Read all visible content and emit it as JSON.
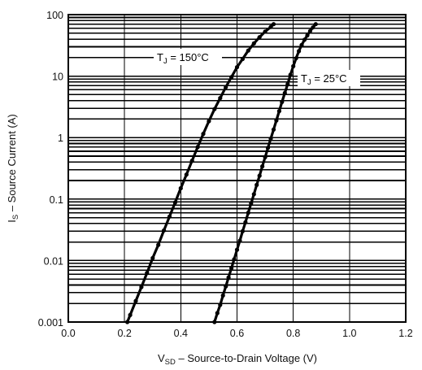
{
  "chart_data": {
    "type": "line",
    "ylog": true,
    "xlim": [
      0.0,
      1.2
    ],
    "ylim": [
      0.001,
      100
    ],
    "x_ticks": [
      "0.0",
      "0.2",
      "0.4",
      "0.6",
      "0.8",
      "1.0",
      "1.2"
    ],
    "y_ticks": [
      "0.001",
      "0.01",
      "0.1",
      "1",
      "10",
      "100"
    ],
    "xlabel": {
      "main": "V",
      "sub": "SD",
      "rest": " – Source-to-Drain Voltage (V)"
    },
    "ylabel": {
      "main": "I",
      "sub": "S",
      "rest": " – Source Current (A)"
    },
    "grid": true,
    "series": [
      {
        "name": {
          "main": "T",
          "sub": "J",
          "rest": " = 150°C"
        },
        "x": [
          0.21,
          0.22,
          0.24,
          0.26,
          0.28,
          0.3,
          0.32,
          0.34,
          0.36,
          0.38,
          0.4,
          0.42,
          0.44,
          0.46,
          0.48,
          0.5,
          0.52,
          0.54,
          0.56,
          0.58,
          0.6,
          0.62,
          0.64,
          0.66,
          0.68,
          0.7,
          0.72,
          0.73
        ],
        "y": [
          0.001,
          0.0013,
          0.0022,
          0.0037,
          0.0063,
          0.011,
          0.018,
          0.031,
          0.052,
          0.088,
          0.15,
          0.25,
          0.42,
          0.7,
          1.15,
          1.85,
          2.9,
          4.4,
          6.6,
          9.6,
          14,
          19,
          26,
          34,
          43,
          53,
          63,
          70
        ]
      },
      {
        "name": {
          "main": "T",
          "sub": "J",
          "rest": " = 25°C"
        },
        "x": [
          0.52,
          0.53,
          0.54,
          0.55,
          0.56,
          0.57,
          0.58,
          0.59,
          0.6,
          0.61,
          0.62,
          0.63,
          0.64,
          0.65,
          0.66,
          0.67,
          0.68,
          0.69,
          0.7,
          0.71,
          0.72,
          0.73,
          0.74,
          0.75,
          0.76,
          0.77,
          0.78,
          0.79,
          0.8,
          0.81,
          0.82,
          0.83,
          0.84,
          0.85,
          0.86,
          0.87,
          0.88
        ],
        "y": [
          0.001,
          0.0014,
          0.0019,
          0.0027,
          0.0038,
          0.0053,
          0.0075,
          0.0105,
          0.015,
          0.021,
          0.03,
          0.042,
          0.06,
          0.085,
          0.12,
          0.17,
          0.24,
          0.34,
          0.48,
          0.68,
          0.96,
          1.35,
          1.9,
          2.7,
          3.8,
          5.3,
          7.4,
          10.5,
          14.5,
          19.5,
          25.5,
          32,
          39,
          46,
          54,
          62,
          70
        ]
      }
    ]
  }
}
